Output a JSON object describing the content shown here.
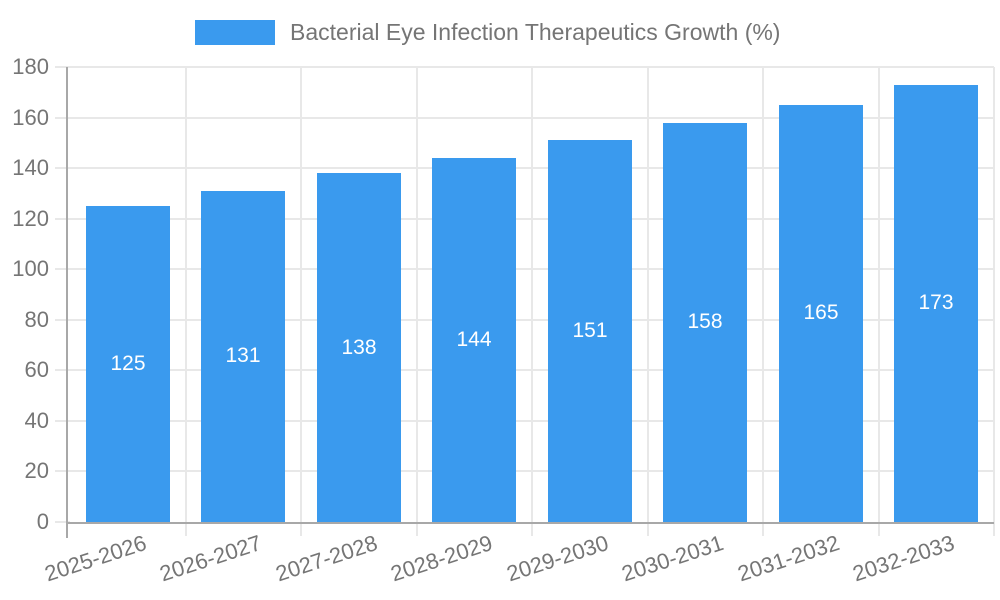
{
  "legend": {
    "label": "Bacterial Eye Infection Therapeutics Growth (%)",
    "swatch_color": "#3A9AEE"
  },
  "chart_data": {
    "type": "bar",
    "title": "Bacterial Eye Infection Therapeutics Growth (%)",
    "series_name": "Bacterial Eye Infection Therapeutics Growth (%)",
    "categories": [
      "2025-2026",
      "2026-2027",
      "2027-2028",
      "2028-2029",
      "2029-2030",
      "2030-2031",
      "2031-2032",
      "2032-2033"
    ],
    "values": [
      125,
      131,
      138,
      144,
      151,
      158,
      165,
      173
    ],
    "value_labels": [
      "125",
      "131",
      "138",
      "144",
      "151",
      "158",
      "165",
      "173"
    ],
    "xlabel": "",
    "ylabel": "",
    "ylim": [
      0,
      180
    ],
    "ytick_step": 20,
    "yticks": [
      0,
      20,
      40,
      60,
      80,
      100,
      120,
      140,
      160,
      180
    ],
    "grid": true,
    "grid_vertical": true,
    "legend_position": "top",
    "bar_color": "#3A9AEE",
    "bar_label_color": "#ffffff",
    "axis_text_color": "#757575",
    "grid_color": "#e8e8e8",
    "axis_line_color": "#a8a8a8",
    "background_color": "#ffffff"
  }
}
